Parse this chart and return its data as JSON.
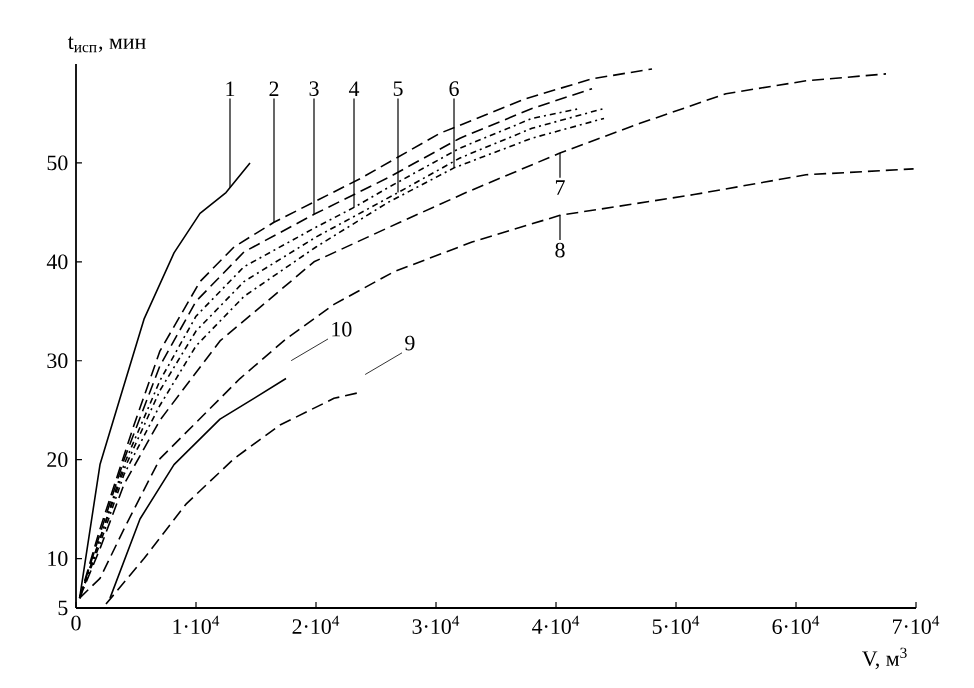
{
  "chart_data": {
    "type": "line",
    "xlabel": "V, м$^{3}$",
    "ylabel": "t$_{исп}$, мин",
    "xlim": [
      0,
      70000
    ],
    "ylim": [
      5,
      60
    ],
    "xticks": [
      0,
      {
        "value": 10000,
        "label": "1·10$^{4}$"
      },
      {
        "value": 20000,
        "label": "2·10$^{4}$"
      },
      {
        "value": 30000,
        "label": "3·10$^{4}$"
      },
      {
        "value": 40000,
        "label": "4·10$^{4}$"
      },
      {
        "value": 50000,
        "label": "5·10$^{4}$"
      },
      {
        "value": 60000,
        "label": "6·10$^{4}$"
      },
      {
        "value": 70000,
        "label": "7·10$^{4}$"
      }
    ],
    "yticks": [
      5,
      10,
      20,
      30,
      40,
      50
    ],
    "series": [
      {
        "color": "#000000",
        "line_style": "solid",
        "x": [
          300,
          2000,
          3667,
          5667,
          8167,
          10333,
          12500,
          14500
        ],
        "values": [
          6,
          19.5,
          26.2,
          34.2,
          40.9,
          44.9,
          47,
          50
        ]
      },
      {
        "color": "#000000",
        "line_style": "dashed",
        "x": [
          300,
          2000,
          4833,
          7000,
          10333,
          13167,
          16500,
          23667,
          30333,
          37500,
          43000,
          48000
        ],
        "values": [
          6,
          13,
          23.5,
          31,
          38,
          41.5,
          44,
          48.4,
          53,
          56.5,
          58.5,
          59.5
        ]
      },
      {
        "color": "#000000",
        "line_style": "dashed",
        "x": [
          300,
          2000,
          4000,
          7000,
          10000,
          14000,
          19833,
          26000,
          32000,
          38000,
          43000
        ],
        "values": [
          6,
          12.5,
          20,
          29.5,
          36,
          41,
          44.8,
          48.5,
          52.5,
          55.5,
          57.5
        ]
      },
      {
        "color": "#000000",
        "line_style": "dotted",
        "x": [
          300,
          2000,
          4000,
          7000,
          10000,
          14000,
          20000,
          23167,
          26000,
          32000,
          38000,
          42000
        ],
        "values": [
          6,
          12,
          19.5,
          28,
          34.5,
          39.5,
          43.5,
          45.5,
          47.5,
          51.5,
          54.5,
          55.5
        ]
      },
      {
        "color": "#000000",
        "line_style": "dotted",
        "x": [
          300,
          2000,
          4000,
          7000,
          10000,
          14000,
          20000,
          26833,
          32000,
          38000,
          44000
        ],
        "values": [
          6,
          12,
          19,
          27,
          33,
          38,
          42.5,
          47,
          50.5,
          53.5,
          55.5
        ]
      },
      {
        "color": "#000000",
        "line_style": "dotted",
        "x": [
          300,
          2000,
          4000,
          7000,
          10000,
          14000,
          20000,
          26000,
          31500,
          38000,
          44000
        ],
        "values": [
          6,
          11.5,
          18.5,
          25.5,
          31.5,
          36.5,
          41.5,
          46,
          49.5,
          52.5,
          54.5
        ]
      },
      {
        "color": "#000000",
        "line_style": "dashed",
        "x": [
          300,
          2000,
          4000,
          7000,
          12000,
          19833,
          27000,
          32500,
          40333,
          47000,
          54167,
          60833,
          67500
        ],
        "values": [
          6,
          11,
          17.5,
          24,
          32,
          40,
          44,
          47,
          51,
          54,
          57,
          58.3,
          59
        ]
      },
      {
        "color": "#000000",
        "line_style": "dashed",
        "x": [
          300,
          2000,
          4167,
          7000,
          13667,
          17500,
          21500,
          26500,
          33000,
          40333,
          51500,
          60833,
          69800
        ],
        "values": [
          6,
          8,
          13.4,
          20.1,
          28.2,
          32.2,
          35.7,
          39,
          42,
          44.7,
          46.8,
          48.8,
          49.4
        ]
      },
      {
        "color": "#000000",
        "line_style": "dashed",
        "x": [
          2500,
          5667,
          9167,
          13167,
          17000,
          21500,
          23667
        ],
        "values": [
          5.4,
          10,
          15.5,
          20.1,
          23.5,
          26.2,
          26.8
        ]
      },
      {
        "color": "#000000",
        "line_style": "solid",
        "x": [
          2833,
          5333,
          8167,
          12000,
          14833,
          17500
        ],
        "values": [
          6,
          14,
          19.5,
          24.1,
          26.2,
          28.2
        ]
      }
    ],
    "annotations": [
      {
        "text": "1",
        "x": 12833,
        "y": 47.5
      },
      {
        "text": "2",
        "x": 16500,
        "y": 44
      },
      {
        "text": "3",
        "x": 19833,
        "y": 44.8
      },
      {
        "text": "4",
        "x": 23167,
        "y": 45.5
      },
      {
        "text": "5",
        "x": 26833,
        "y": 47
      },
      {
        "text": "6",
        "x": 31500,
        "y": 49.5
      },
      {
        "text": "7",
        "x": 40333,
        "y": 51
      },
      {
        "text": "8",
        "x": 40333,
        "y": 44.7
      },
      {
        "text": "9",
        "x": 23667,
        "y": 26.8
      },
      {
        "text": "10",
        "x": 17500,
        "y": 28.2
      }
    ]
  }
}
